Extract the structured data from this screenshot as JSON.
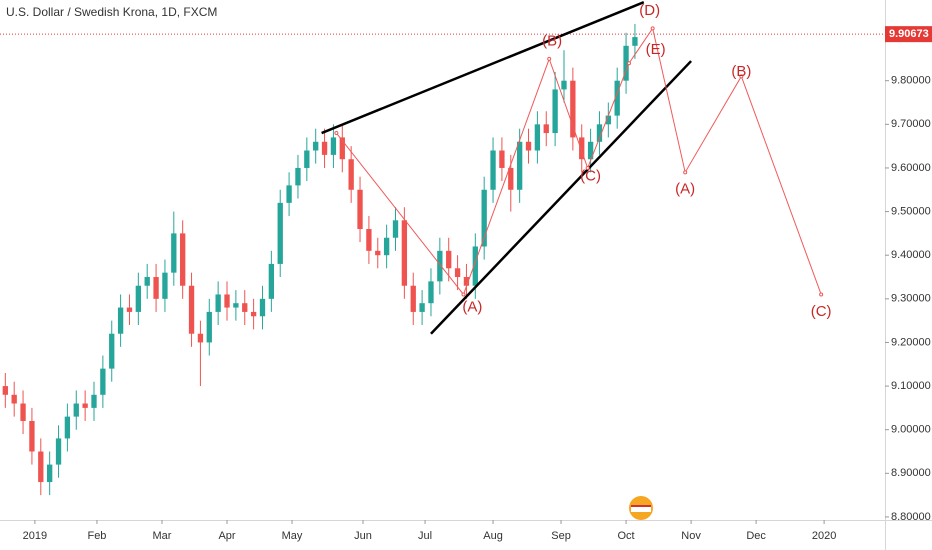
{
  "chart_data": {
    "type": "candlestick",
    "title": "U.S. Dollar / Swedish Krona, 1D, FXCM",
    "up_color": "#26a69a",
    "down_color": "#ef5350",
    "xlim": [
      -11.8,
      287.6
    ],
    "ylim": [
      8.793,
      9.985
    ],
    "xticks": [
      {
        "value": 0,
        "label": "2019"
      },
      {
        "value": 21,
        "label": "Feb"
      },
      {
        "value": 43,
        "label": "Mar"
      },
      {
        "value": 65,
        "label": "Apr"
      },
      {
        "value": 87,
        "label": "May"
      },
      {
        "value": 111,
        "label": "Jun"
      },
      {
        "value": 132,
        "label": "Jul"
      },
      {
        "value": 155,
        "label": "Aug"
      },
      {
        "value": 178,
        "label": "Sep"
      },
      {
        "value": 200,
        "label": "Oct"
      },
      {
        "value": 222,
        "label": "Nov"
      },
      {
        "value": 244,
        "label": "Dec"
      },
      {
        "value": 267,
        "label": "2020"
      }
    ],
    "yticks": [
      {
        "value": 8.8,
        "label": "8.80000"
      },
      {
        "value": 8.9,
        "label": "8.90000"
      },
      {
        "value": 9.0,
        "label": "9.00000"
      },
      {
        "value": 9.1,
        "label": "9.10000"
      },
      {
        "value": 9.2,
        "label": "9.20000"
      },
      {
        "value": 9.3,
        "label": "9.30000"
      },
      {
        "value": 9.4,
        "label": "9.40000"
      },
      {
        "value": 9.5,
        "label": "9.50000"
      },
      {
        "value": 9.6,
        "label": "9.60000"
      },
      {
        "value": 9.7,
        "label": "9.70000"
      },
      {
        "value": 9.8,
        "label": "9.80000"
      }
    ],
    "last_price": 9.90673,
    "last_price_color": "#e53935",
    "x": [
      -10,
      -7,
      -4,
      -1,
      2,
      5,
      8,
      11,
      14,
      17,
      20,
      23,
      26,
      29,
      32,
      35,
      38,
      41,
      44,
      47,
      50,
      53,
      56,
      59,
      62,
      65,
      68,
      71,
      74,
      77,
      80,
      83,
      86,
      89,
      92,
      95,
      98,
      101,
      104,
      107,
      110,
      113,
      116,
      119,
      122,
      125,
      128,
      131,
      134,
      137,
      140,
      143,
      146,
      149,
      152,
      155,
      158,
      161,
      164,
      167,
      170,
      173,
      176,
      179,
      182,
      185,
      188,
      191,
      194,
      197,
      200,
      203
    ],
    "open": [
      9.1,
      9.08,
      9.06,
      9.02,
      8.95,
      8.88,
      8.92,
      8.98,
      9.03,
      9.06,
      9.05,
      9.08,
      9.14,
      9.22,
      9.28,
      9.27,
      9.33,
      9.35,
      9.3,
      9.36,
      9.45,
      9.33,
      9.22,
      9.2,
      9.27,
      9.31,
      9.28,
      9.29,
      9.27,
      9.26,
      9.3,
      9.38,
      9.52,
      9.56,
      9.6,
      9.64,
      9.66,
      9.63,
      9.67,
      9.62,
      9.55,
      9.46,
      9.41,
      9.4,
      9.44,
      9.48,
      9.33,
      9.27,
      9.29,
      9.34,
      9.41,
      9.37,
      9.35,
      9.33,
      9.42,
      9.55,
      9.64,
      9.6,
      9.55,
      9.66,
      9.64,
      9.7,
      9.68,
      9.78,
      9.8,
      9.67,
      9.62,
      9.66,
      9.7,
      9.72,
      9.8,
      9.88
    ],
    "high": [
      9.13,
      9.11,
      9.09,
      9.05,
      8.98,
      8.95,
      9.01,
      9.06,
      9.09,
      9.09,
      9.11,
      9.17,
      9.25,
      9.31,
      9.31,
      9.36,
      9.38,
      9.38,
      9.39,
      9.5,
      9.48,
      9.36,
      9.25,
      9.3,
      9.34,
      9.34,
      9.32,
      9.32,
      9.3,
      9.33,
      9.41,
      9.55,
      9.59,
      9.63,
      9.67,
      9.69,
      9.69,
      9.7,
      9.7,
      9.65,
      9.58,
      9.49,
      9.44,
      9.47,
      9.51,
      9.51,
      9.36,
      9.32,
      9.37,
      9.44,
      9.44,
      9.4,
      9.38,
      9.45,
      9.58,
      9.67,
      9.67,
      9.63,
      9.69,
      9.69,
      9.73,
      9.73,
      9.82,
      9.87,
      9.83,
      9.7,
      9.69,
      9.73,
      9.75,
      9.83,
      9.91,
      9.93
    ],
    "low": [
      9.05,
      9.03,
      8.99,
      8.92,
      8.85,
      8.85,
      8.89,
      8.95,
      9.0,
      9.02,
      9.02,
      9.05,
      9.11,
      9.19,
      9.24,
      9.24,
      9.3,
      9.27,
      9.27,
      9.33,
      9.3,
      9.19,
      9.1,
      9.17,
      9.24,
      9.25,
      9.25,
      9.24,
      9.23,
      9.23,
      9.27,
      9.35,
      9.49,
      9.53,
      9.57,
      9.61,
      9.6,
      9.6,
      9.59,
      9.52,
      9.43,
      9.38,
      9.37,
      9.37,
      9.41,
      9.3,
      9.24,
      9.24,
      9.26,
      9.31,
      9.34,
      9.32,
      9.3,
      9.3,
      9.39,
      9.52,
      9.57,
      9.5,
      9.52,
      9.61,
      9.61,
      9.65,
      9.65,
      9.75,
      9.64,
      9.59,
      9.59,
      9.63,
      9.67,
      9.69,
      9.77,
      9.85
    ],
    "close": [
      9.08,
      9.06,
      9.02,
      8.95,
      8.88,
      8.92,
      8.98,
      9.03,
      9.06,
      9.05,
      9.08,
      9.14,
      9.22,
      9.28,
      9.27,
      9.33,
      9.35,
      9.3,
      9.36,
      9.45,
      9.33,
      9.22,
      9.2,
      9.27,
      9.31,
      9.28,
      9.29,
      9.27,
      9.26,
      9.3,
      9.38,
      9.52,
      9.56,
      9.6,
      9.64,
      9.66,
      9.63,
      9.67,
      9.62,
      9.55,
      9.46,
      9.41,
      9.4,
      9.44,
      9.48,
      9.33,
      9.27,
      9.29,
      9.34,
      9.41,
      9.37,
      9.35,
      9.33,
      9.42,
      9.55,
      9.64,
      9.6,
      9.55,
      9.66,
      9.64,
      9.7,
      9.68,
      9.78,
      9.8,
      9.67,
      9.62,
      9.66,
      9.7,
      9.72,
      9.8,
      9.88,
      9.9
    ],
    "trendlines": [
      {
        "color": "#000000",
        "x": [
          97,
          206
        ],
        "y": [
          9.68,
          9.98
        ]
      },
      {
        "color": "#000000",
        "x": [
          134,
          222
        ],
        "y": [
          9.22,
          9.845
        ]
      }
    ],
    "wave": {
      "color": "#f05a5a",
      "x": [
        102,
        145,
        174,
        187,
        201,
        209,
        220,
        239,
        266
      ],
      "y": [
        9.68,
        9.31,
        9.85,
        9.6,
        9.84,
        9.92,
        9.59,
        9.81,
        9.31
      ]
    },
    "annotations_color": "#c62828",
    "annotations": [
      {
        "text": "(A)",
        "x": 148,
        "y": 9.28
      },
      {
        "text": "(B)",
        "x": 175,
        "y": 9.89
      },
      {
        "text": "(C)",
        "x": 188,
        "y": 9.58
      },
      {
        "text": "(D)",
        "x": 208,
        "y": 9.96
      },
      {
        "text": "(E)",
        "x": 210,
        "y": 9.87
      },
      {
        "text": "(A)",
        "x": 220,
        "y": 9.55
      },
      {
        "text": "(B)",
        "x": 239,
        "y": 9.82
      },
      {
        "text": "(C)",
        "x": 266,
        "y": 9.27
      }
    ]
  }
}
